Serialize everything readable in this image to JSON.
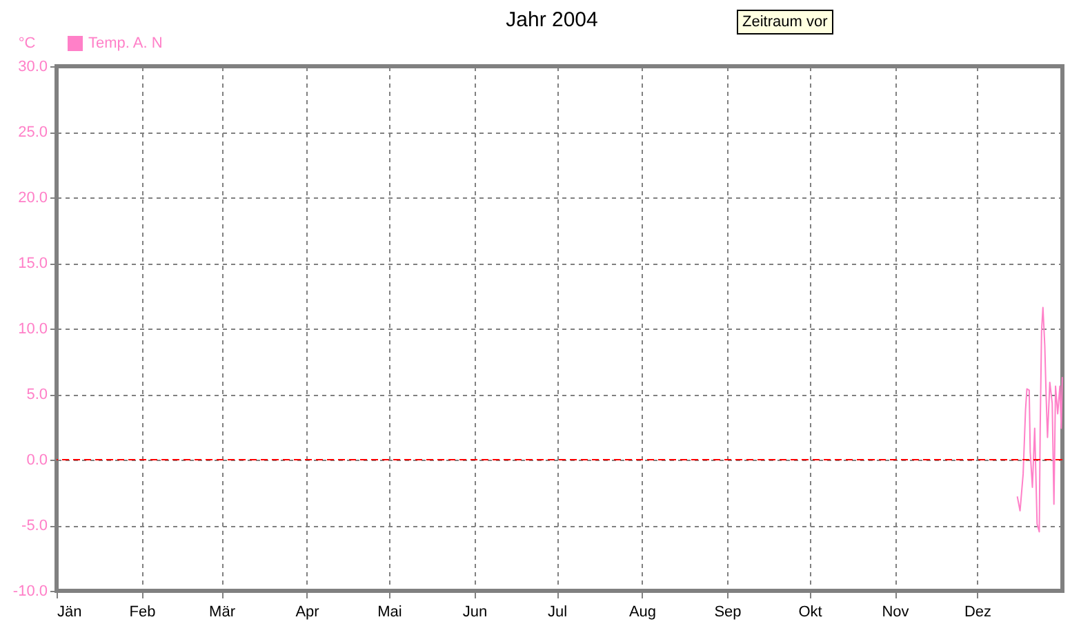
{
  "chart_data": {
    "type": "line",
    "title": "Jahr 2004",
    "ylabel": "°C",
    "annotations": [
      "Zeitraum vor"
    ],
    "x": [
      "2004-12-15T14:00",
      "2004-12-16T14:00",
      "2004-12-17T17:00",
      "2004-12-18T14:00",
      "2004-12-19T02:00",
      "2004-12-19T22:00",
      "2004-12-20T07:00",
      "2004-12-21T02:00",
      "2004-12-21T22:00",
      "2004-12-22T19:00",
      "2004-12-23T14:00",
      "2004-12-23T22:00",
      "2004-12-24T10:00",
      "2004-12-24T22:00",
      "2004-12-25T14:00",
      "2004-12-26T02:00",
      "2004-12-26T14:00",
      "2004-12-27T10:00",
      "2004-12-28T07:00",
      "2004-12-28T22:00",
      "2004-12-29T12:00",
      "2004-12-30T07:00",
      "2004-12-31T02:00",
      "2004-12-31T14:00",
      "2004-12-31T23:00"
    ],
    "series": [
      {
        "name": "Temp. A. N",
        "color": "#ff80c8",
        "values": [
          -2.8,
          -3.9,
          -1.1,
          3.8,
          5.4,
          5.3,
          0.6,
          -2.1,
          2.4,
          -4.9,
          -5.5,
          2.4,
          9.8,
          11.6,
          8.7,
          4.8,
          1.7,
          5.9,
          4.3,
          -3.4,
          5.6,
          3.5,
          5.6,
          2.4,
          6.3
        ]
      }
    ],
    "xlim": [
      "2004-01-01",
      "2005-01-01"
    ],
    "xticks": [
      {
        "value": "2004-01-01",
        "label": "Jän"
      },
      {
        "value": "2004-02-01",
        "label": "Feb"
      },
      {
        "value": "2004-03-01",
        "label": "Mär"
      },
      {
        "value": "2004-04-01",
        "label": "Apr"
      },
      {
        "value": "2004-05-01",
        "label": "Mai"
      },
      {
        "value": "2004-06-01",
        "label": "Jun"
      },
      {
        "value": "2004-07-01",
        "label": "Jul"
      },
      {
        "value": "2004-08-01",
        "label": "Aug"
      },
      {
        "value": "2004-09-01",
        "label": "Sep"
      },
      {
        "value": "2004-10-01",
        "label": "Okt"
      },
      {
        "value": "2004-11-01",
        "label": "Nov"
      },
      {
        "value": "2004-12-01",
        "label": "Dez"
      }
    ],
    "ylim": [
      -10,
      30
    ],
    "yticks": [
      {
        "value": -10,
        "label": "-10.0"
      },
      {
        "value": -5,
        "label": "-5.0"
      },
      {
        "value": 0,
        "label": "0.0"
      },
      {
        "value": 5,
        "label": "5.0"
      },
      {
        "value": 10,
        "label": "10.0"
      },
      {
        "value": 15,
        "label": "15.0"
      },
      {
        "value": 20,
        "label": "20.0"
      },
      {
        "value": 25,
        "label": "25.0"
      },
      {
        "value": 30,
        "label": "30.0"
      }
    ],
    "ref_lines": [
      {
        "axis": "y",
        "value": 0,
        "color": "#ff0000",
        "line_style": "dashed"
      }
    ],
    "grid": true,
    "legend": "top left",
    "marker": "none",
    "line_style": "solid"
  }
}
